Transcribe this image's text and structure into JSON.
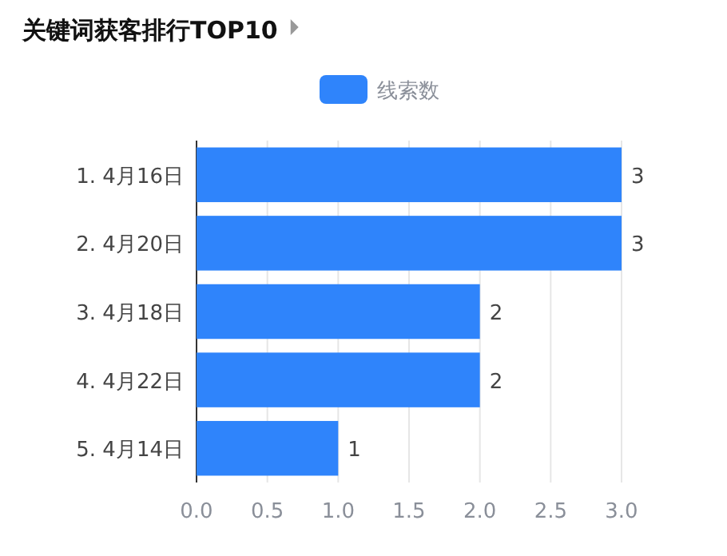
{
  "chart_data": {
    "type": "bar",
    "orientation": "horizontal",
    "title": "关键词获客排行TOP10",
    "categories": [
      "1. 4月16日",
      "2. 4月20日",
      "3. 4月18日",
      "4. 4月22日",
      "5. 4月14日"
    ],
    "series": [
      {
        "name": "线索数",
        "color": "#2f84fb",
        "values": [
          3,
          3,
          2,
          2,
          1
        ]
      }
    ],
    "xlim": [
      0,
      3
    ],
    "xticks": [
      {
        "value": 0,
        "label": "0.0"
      },
      {
        "value": 0.5,
        "label": "0.5"
      },
      {
        "value": 1,
        "label": "1.0"
      },
      {
        "value": 1.5,
        "label": "1.5"
      },
      {
        "value": 2,
        "label": "2.0"
      },
      {
        "value": 2.5,
        "label": "2.5"
      },
      {
        "value": 3,
        "label": "3.0"
      }
    ],
    "grid": "x",
    "legend": "top",
    "data_labels": true
  }
}
